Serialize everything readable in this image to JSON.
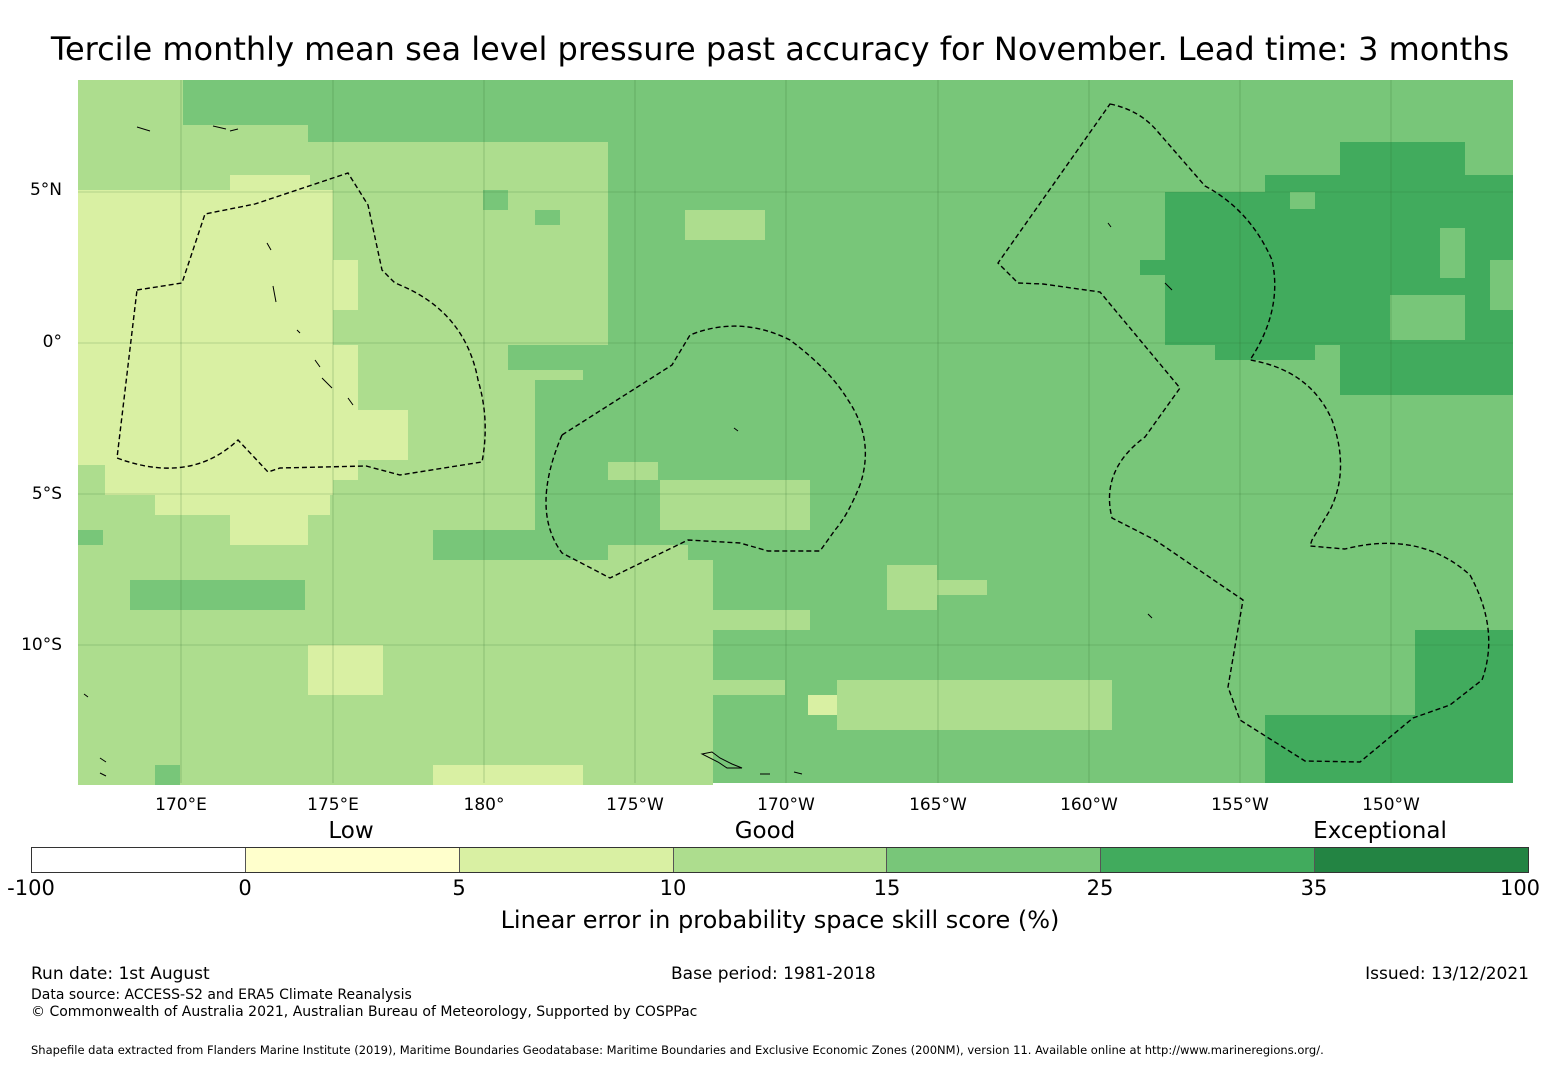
{
  "title": "Tercile monthly mean sea level pressure past accuracy for November. Lead time: 3 months",
  "map": {
    "lat_labels": [
      "5°N",
      "0°",
      "5°S",
      "10°S"
    ],
    "lon_labels": [
      "170°E",
      "175°E",
      "180°",
      "175°W",
      "170°W",
      "165°W",
      "160°W",
      "155°W",
      "150°W"
    ],
    "grid_color": "#2f6b2f"
  },
  "legend": {
    "categories": [
      "Low",
      "Good",
      "Exceptional"
    ],
    "ticks": [
      "-100",
      "0",
      "5",
      "10",
      "15",
      "25",
      "35",
      "100"
    ],
    "colors": [
      "#ffffff",
      "#ffffcc",
      "#d9f0a3",
      "#addd8e",
      "#78c679",
      "#41ab5d",
      "#238443"
    ],
    "title": "Linear error in probability space skill score (%)"
  },
  "footer": {
    "run_date": "Run date: 1st August",
    "base_period": "Base period: 1981-2018",
    "issued": "Issued: 13/12/2021",
    "data_source": "Data source: ACCESS-S2 and ERA5 Climate Reanalysis",
    "copyright": "© Commonwealth of Australia 2021, Australian Bureau of Meteorology, Supported by COSPPac",
    "shapefile_note": "Shapefile data extracted from Flanders Marine Institute (2019), Maritime Boundaries Geodatabase: Maritime Boundaries and Exclusive Economic Zones (200NM), version 11. Available online at http://www.marineregions.org/."
  }
}
